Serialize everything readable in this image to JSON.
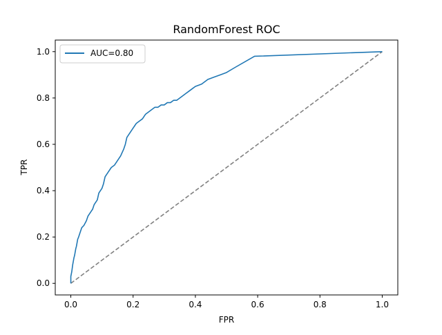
{
  "chart_data": {
    "type": "line",
    "title": "RandomForest ROC",
    "xlabel": "FPR",
    "ylabel": "TPR",
    "xlim": [
      -0.05,
      1.05
    ],
    "ylim": [
      -0.05,
      1.05
    ],
    "xticks": [
      "0.0",
      "0.2",
      "0.4",
      "0.6",
      "0.8",
      "1.0"
    ],
    "yticks": [
      "0.0",
      "0.2",
      "0.4",
      "0.6",
      "0.8",
      "1.0"
    ],
    "grid": false,
    "legend_position": "upper left",
    "series": [
      {
        "name": "AUC=0.80",
        "color": "#1f77b4",
        "style": "solid",
        "x": [
          0.0,
          0.0,
          0.003,
          0.006,
          0.01,
          0.012,
          0.016,
          0.018,
          0.022,
          0.025,
          0.03,
          0.035,
          0.042,
          0.05,
          0.055,
          0.06,
          0.065,
          0.07,
          0.075,
          0.085,
          0.09,
          0.095,
          0.1,
          0.105,
          0.11,
          0.12,
          0.13,
          0.14,
          0.15,
          0.16,
          0.17,
          0.175,
          0.18,
          0.19,
          0.2,
          0.205,
          0.21,
          0.22,
          0.23,
          0.24,
          0.25,
          0.26,
          0.27,
          0.28,
          0.29,
          0.3,
          0.31,
          0.32,
          0.33,
          0.34,
          0.35,
          0.36,
          0.37,
          0.38,
          0.39,
          0.4,
          0.42,
          0.44,
          0.46,
          0.48,
          0.5,
          0.525,
          0.59,
          1.0
        ],
        "y": [
          0.0,
          0.03,
          0.05,
          0.08,
          0.11,
          0.12,
          0.15,
          0.16,
          0.19,
          0.2,
          0.22,
          0.24,
          0.25,
          0.27,
          0.29,
          0.3,
          0.31,
          0.32,
          0.34,
          0.36,
          0.39,
          0.4,
          0.41,
          0.43,
          0.46,
          0.48,
          0.5,
          0.51,
          0.53,
          0.55,
          0.58,
          0.6,
          0.63,
          0.65,
          0.67,
          0.68,
          0.69,
          0.7,
          0.71,
          0.73,
          0.74,
          0.75,
          0.76,
          0.76,
          0.77,
          0.77,
          0.78,
          0.78,
          0.79,
          0.79,
          0.8,
          0.81,
          0.82,
          0.83,
          0.84,
          0.85,
          0.86,
          0.88,
          0.89,
          0.9,
          0.91,
          0.93,
          0.98,
          1.0
        ]
      },
      {
        "name": "",
        "color": "#808080",
        "style": "dashed",
        "x": [
          0.0,
          1.0
        ],
        "y": [
          0.0,
          1.0
        ]
      }
    ]
  }
}
